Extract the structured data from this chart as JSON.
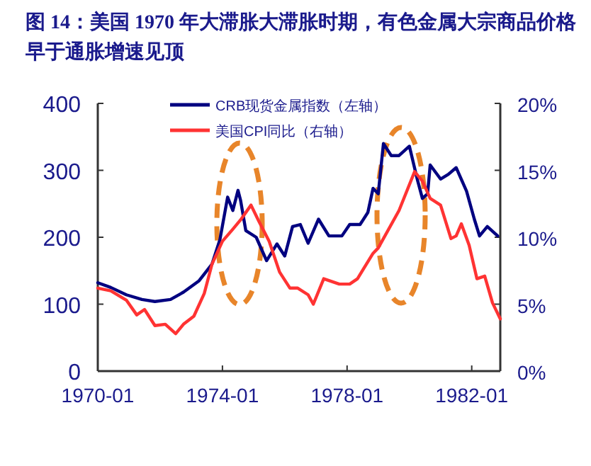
{
  "chart_data": {
    "type": "line",
    "title": "图 14：美国 1970 年大滞胀大滞胀时期，有色金属大宗商品价格早于通胀增速见顶",
    "xlim": [
      "1970-01",
      "1982-12"
    ],
    "xticks": [
      "1970-01",
      "1974-01",
      "1978-01",
      "1982-01"
    ],
    "ylim": [
      0,
      400
    ],
    "yticks": [
      0,
      100,
      200,
      300,
      400
    ],
    "y2lim": [
      0,
      20
    ],
    "y2ticks": [
      {
        "value": 0,
        "label": "0%"
      },
      {
        "value": 5,
        "label": "5%"
      },
      {
        "value": 10,
        "label": "10%"
      },
      {
        "value": 15,
        "label": "15%"
      },
      {
        "value": 20,
        "label": "20%"
      }
    ],
    "legend": "top",
    "grid": false,
    "marker": "none",
    "line_style": "solid",
    "series": [
      {
        "name": "CRB现货金属指数（左轴）",
        "color": "#000080",
        "x": [
          "1970-01",
          "1970-06",
          "1970-12",
          "1971-06",
          "1971-11",
          "1972-05",
          "1972-10",
          "1973-04",
          "1973-09",
          "1973-12",
          "1974-03",
          "1974-05",
          "1974-07",
          "1974-08",
          "1974-10",
          "1975-02",
          "1975-06",
          "1975-10",
          "1976-01",
          "1976-04",
          "1976-07",
          "1976-10",
          "1977-02",
          "1977-06",
          "1977-11",
          "1978-02",
          "1978-06",
          "1978-09",
          "1978-11",
          "1979-01",
          "1979-03",
          "1979-06",
          "1979-09",
          "1980-01",
          "1980-04",
          "1980-06",
          "1980-08",
          "1980-09",
          "1981-01",
          "1981-04",
          "1981-07",
          "1981-11",
          "1982-02",
          "1982-04",
          "1982-07",
          "1982-11"
        ],
        "values": [
          132,
          125,
          114,
          107,
          104,
          107,
          118,
          135,
          160,
          196,
          260,
          240,
          270,
          255,
          210,
          200,
          165,
          190,
          172,
          216,
          219,
          191,
          227,
          202,
          202,
          219,
          219,
          237,
          273,
          265,
          340,
          322,
          322,
          336,
          287,
          258,
          265,
          308,
          287,
          294,
          304,
          269,
          227,
          202,
          216,
          202
        ]
      },
      {
        "name": "美国CPI同比（右轴）",
        "color": "#ff3333",
        "axis": "y2",
        "x": [
          "1970-01",
          "1970-06",
          "1970-12",
          "1971-04",
          "1971-07",
          "1971-11",
          "1972-03",
          "1972-07",
          "1972-10",
          "1973-02",
          "1973-06",
          "1973-09",
          "1974-01",
          "1974-05",
          "1974-08",
          "1974-12",
          "1975-03",
          "1975-07",
          "1975-11",
          "1976-03",
          "1976-06",
          "1976-10",
          "1976-12",
          "1977-04",
          "1977-10",
          "1978-02",
          "1978-05",
          "1978-11",
          "1979-01",
          "1979-09",
          "1980-03",
          "1980-06",
          "1980-09",
          "1981-01",
          "1981-05",
          "1981-07",
          "1981-09",
          "1981-12",
          "1982-03",
          "1982-06",
          "1982-09",
          "1982-12"
        ],
        "values": [
          6.2,
          6.0,
          5.3,
          4.2,
          4.6,
          3.4,
          3.5,
          2.8,
          3.5,
          4.1,
          5.8,
          8.0,
          9.7,
          10.6,
          11.3,
          12.4,
          11.2,
          9.7,
          7.4,
          6.2,
          6.2,
          5.7,
          5.0,
          6.9,
          6.5,
          6.5,
          6.9,
          8.8,
          9.2,
          12.0,
          14.9,
          14.2,
          12.9,
          12.4,
          9.9,
          10.1,
          11.0,
          9.4,
          6.9,
          7.1,
          5.1,
          3.9
        ]
      }
    ]
  }
}
